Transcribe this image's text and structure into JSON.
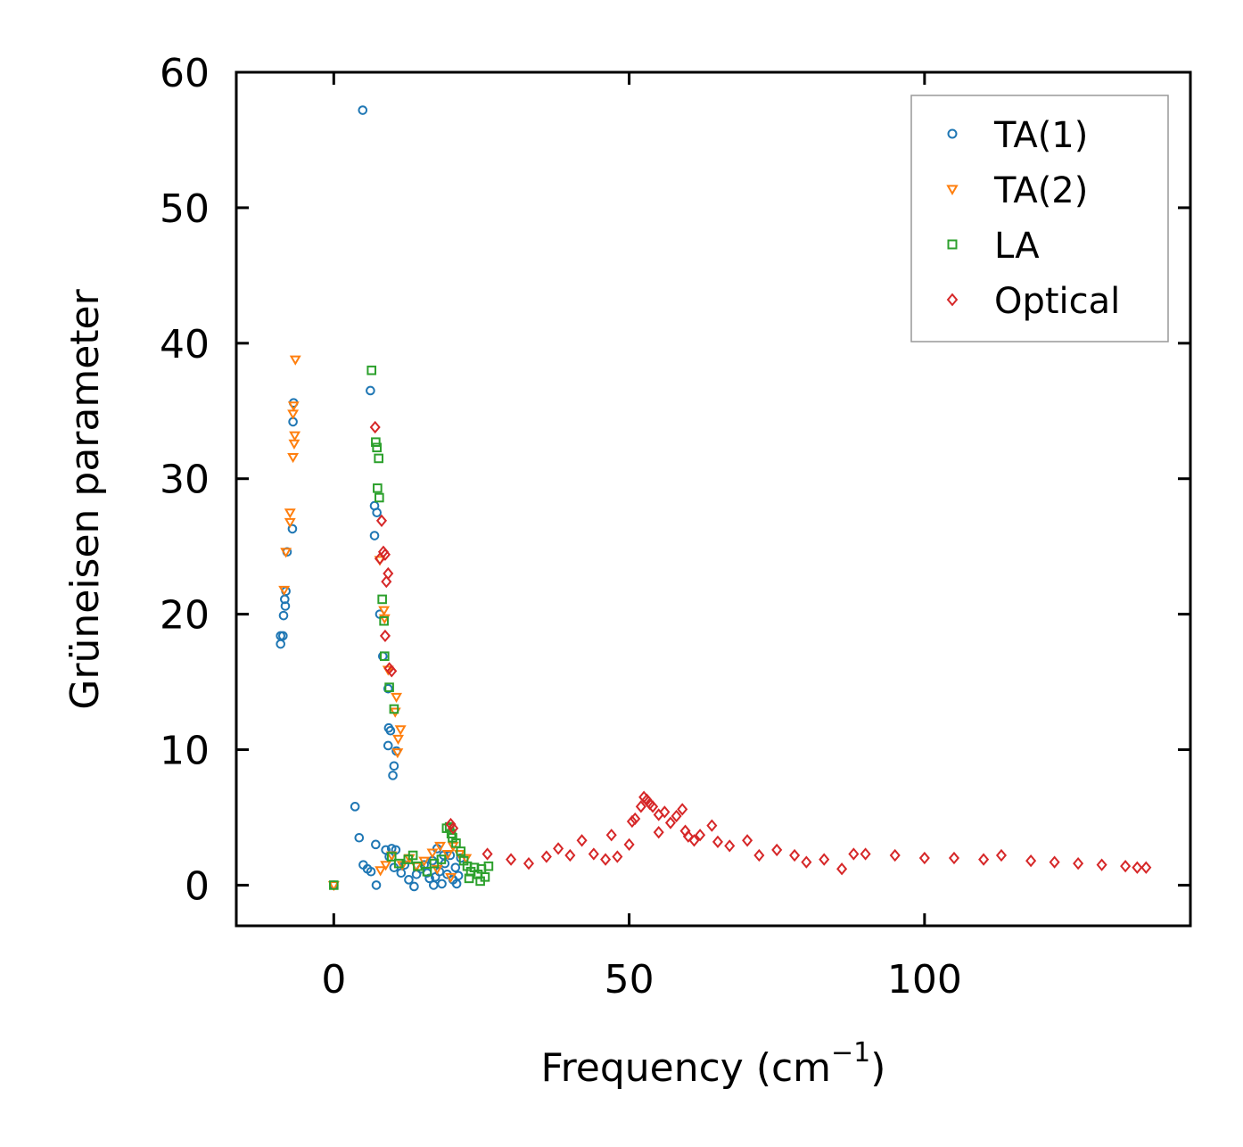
{
  "chart_data": {
    "type": "scatter",
    "title": "",
    "xlabel": "Frequency (cm",
    "xlabel_sup": "−1",
    "xlabel_close": ")",
    "ylabel": "Grüneisen parameter",
    "xlim": [
      -16.5,
      145
    ],
    "ylim": [
      -3,
      60
    ],
    "xticks": [
      0,
      50,
      100
    ],
    "yticks": [
      0,
      10,
      20,
      30,
      40,
      50,
      60
    ],
    "grid": false,
    "legend_position": "top-right",
    "series": [
      {
        "name": "TA(1)",
        "marker": "circle",
        "color": "#1f77b4",
        "points": [
          [
            -9,
            17.8
          ],
          [
            -9,
            18.4
          ],
          [
            -8.6,
            18.4
          ],
          [
            -8.5,
            19.9
          ],
          [
            -8.2,
            20.6
          ],
          [
            -8.1,
            21.7
          ],
          [
            -8.3,
            21.1
          ],
          [
            -7.9,
            24.6
          ],
          [
            -7,
            26.3
          ],
          [
            -6.9,
            34.2
          ],
          [
            -6.8,
            35.6
          ],
          [
            4.9,
            57.2
          ],
          [
            6.2,
            36.5
          ],
          [
            6.9,
            28.0
          ],
          [
            7.3,
            27.5
          ],
          [
            6.9,
            25.8
          ],
          [
            7.8,
            20.0
          ],
          [
            8.3,
            16.9
          ],
          [
            9.2,
            14.5
          ],
          [
            9.6,
            11.4
          ],
          [
            9.3,
            11.6
          ],
          [
            9.2,
            10.3
          ],
          [
            10.2,
            8.8
          ],
          [
            10.0,
            8.1
          ],
          [
            10.6,
            9.9
          ],
          [
            3.6,
            5.8
          ],
          [
            4.3,
            3.5
          ],
          [
            5.0,
            1.5
          ],
          [
            5.7,
            1.2
          ],
          [
            6.3,
            1.0
          ],
          [
            7.2,
            0.0
          ],
          [
            7.1,
            3.0
          ],
          [
            8.8,
            2.6
          ],
          [
            9.8,
            2.7
          ],
          [
            10.5,
            2.6
          ],
          [
            9.4,
            2.1
          ],
          [
            10.2,
            1.3
          ],
          [
            11.4,
            0.9
          ],
          [
            12.0,
            1.5
          ],
          [
            12.7,
            0.4
          ],
          [
            13.6,
            -0.1
          ],
          [
            14.0,
            0.8
          ],
          [
            14.8,
            1.2
          ],
          [
            15.3,
            1.5
          ],
          [
            15.8,
            0.9
          ],
          [
            16.2,
            0.5
          ],
          [
            16.7,
            1.8
          ],
          [
            17.2,
            0.6
          ],
          [
            17.5,
            2.7
          ],
          [
            17.9,
            1.0
          ],
          [
            18.3,
            0.1
          ],
          [
            18.8,
            1.6
          ],
          [
            19.2,
            0.8
          ],
          [
            19.7,
            2.2
          ],
          [
            20.2,
            0.4
          ],
          [
            20.6,
            1.3
          ],
          [
            21.1,
            0.7
          ],
          [
            21.5,
            2.0
          ],
          [
            16.9,
            0.0
          ],
          [
            18.6,
            2.2
          ],
          [
            20.8,
            0.1
          ],
          [
            0.0,
            0.0
          ]
        ]
      },
      {
        "name": "TA(2)",
        "marker": "triangle-down",
        "color": "#ff7f0e",
        "points": [
          [
            -6.5,
            38.8
          ],
          [
            -6.8,
            35.4
          ],
          [
            -6.9,
            34.8
          ],
          [
            -6.6,
            33.2
          ],
          [
            -6.7,
            32.6
          ],
          [
            -6.9,
            31.6
          ],
          [
            -7.4,
            27.5
          ],
          [
            -7.4,
            26.8
          ],
          [
            -8.1,
            24.6
          ],
          [
            -8.4,
            21.8
          ],
          [
            7.8,
            24.0
          ],
          [
            8.5,
            20.3
          ],
          [
            8.6,
            19.7
          ],
          [
            9.2,
            15.9
          ],
          [
            10.6,
            13.9
          ],
          [
            10.4,
            12.8
          ],
          [
            11.3,
            11.5
          ],
          [
            10.9,
            10.8
          ],
          [
            10.8,
            9.8
          ],
          [
            7.9,
            1.1
          ],
          [
            8.8,
            1.5
          ],
          [
            9.8,
            2.2
          ],
          [
            11.6,
            1.5
          ],
          [
            12.8,
            2.0
          ],
          [
            14.0,
            1.4
          ],
          [
            15.3,
            1.8
          ],
          [
            16.7,
            2.4
          ],
          [
            18.0,
            2.9
          ],
          [
            19.3,
            2.3
          ],
          [
            20.2,
            2.9
          ],
          [
            21.3,
            2.3
          ],
          [
            22.4,
            2.0
          ],
          [
            17.5,
            1.2
          ],
          [
            19.8,
            0.6
          ],
          [
            0.0,
            0.0
          ]
        ]
      },
      {
        "name": "LA",
        "marker": "square",
        "color": "#2ca02c",
        "points": [
          [
            6.4,
            38.0
          ],
          [
            7.1,
            32.7
          ],
          [
            7.3,
            32.3
          ],
          [
            7.6,
            31.5
          ],
          [
            7.4,
            29.3
          ],
          [
            7.7,
            28.6
          ],
          [
            8.2,
            21.1
          ],
          [
            8.5,
            19.5
          ],
          [
            8.6,
            16.9
          ],
          [
            9.4,
            14.6
          ],
          [
            10.2,
            13.0
          ],
          [
            9.8,
            2.1
          ],
          [
            11.0,
            1.6
          ],
          [
            12.6,
            1.9
          ],
          [
            13.4,
            2.2
          ],
          [
            14.2,
            1.4
          ],
          [
            15.8,
            1.0
          ],
          [
            17.0,
            1.6
          ],
          [
            18.2,
            1.9
          ],
          [
            19.1,
            4.2
          ],
          [
            19.6,
            4.3
          ],
          [
            19.9,
            3.8
          ],
          [
            20.1,
            3.5
          ],
          [
            20.7,
            3.1
          ],
          [
            21.5,
            2.5
          ],
          [
            22.0,
            1.8
          ],
          [
            22.6,
            1.4
          ],
          [
            23.2,
            1.0
          ],
          [
            23.8,
            1.3
          ],
          [
            24.4,
            0.8
          ],
          [
            25.0,
            1.2
          ],
          [
            25.6,
            0.6
          ],
          [
            26.2,
            1.4
          ],
          [
            24.8,
            0.3
          ],
          [
            22.9,
            0.5
          ],
          [
            0.0,
            0.0
          ]
        ]
      },
      {
        "name": "Optical",
        "marker": "diamond",
        "color": "#d62728",
        "points": [
          [
            7.0,
            33.8
          ],
          [
            8.1,
            26.9
          ],
          [
            8.4,
            24.6
          ],
          [
            8.7,
            24.4
          ],
          [
            7.8,
            24.1
          ],
          [
            9.2,
            23.0
          ],
          [
            8.9,
            22.4
          ],
          [
            8.7,
            18.4
          ],
          [
            9.4,
            16.0
          ],
          [
            9.8,
            15.8
          ],
          [
            19.8,
            4.5
          ],
          [
            20.2,
            4.2
          ],
          [
            26,
            2.3
          ],
          [
            30,
            1.9
          ],
          [
            33,
            1.6
          ],
          [
            36,
            2.1
          ],
          [
            38,
            2.7
          ],
          [
            40,
            2.2
          ],
          [
            42,
            3.3
          ],
          [
            44,
            2.3
          ],
          [
            46,
            1.9
          ],
          [
            47,
            3.7
          ],
          [
            48,
            2.1
          ],
          [
            50,
            3.0
          ],
          [
            50.5,
            4.7
          ],
          [
            51,
            4.9
          ],
          [
            52,
            5.8
          ],
          [
            52.5,
            6.5
          ],
          [
            53,
            6.3
          ],
          [
            53.5,
            6.0
          ],
          [
            54,
            5.8
          ],
          [
            55,
            5.2
          ],
          [
            55,
            3.9
          ],
          [
            56,
            5.4
          ],
          [
            57,
            4.6
          ],
          [
            58,
            5.1
          ],
          [
            59,
            5.6
          ],
          [
            59.5,
            4.0
          ],
          [
            60,
            3.6
          ],
          [
            61,
            3.3
          ],
          [
            62,
            3.7
          ],
          [
            64,
            4.4
          ],
          [
            65,
            3.2
          ],
          [
            67,
            2.9
          ],
          [
            70,
            3.3
          ],
          [
            72,
            2.2
          ],
          [
            75,
            2.6
          ],
          [
            78,
            2.2
          ],
          [
            80,
            1.7
          ],
          [
            83,
            1.9
          ],
          [
            86,
            1.2
          ],
          [
            88,
            2.3
          ],
          [
            90,
            2.3
          ],
          [
            95,
            2.2
          ],
          [
            100,
            2.0
          ],
          [
            105,
            2.0
          ],
          [
            110,
            1.9
          ],
          [
            113,
            2.2
          ],
          [
            118,
            1.8
          ],
          [
            122,
            1.7
          ],
          [
            126,
            1.6
          ],
          [
            130,
            1.5
          ],
          [
            134,
            1.4
          ],
          [
            136,
            1.3
          ],
          [
            137.5,
            1.3
          ]
        ]
      }
    ]
  }
}
